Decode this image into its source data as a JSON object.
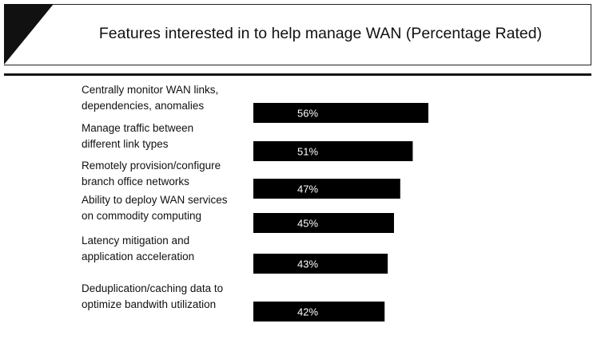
{
  "header": {
    "title": "Features interested in to help manage WAN (Percentage Rated)"
  },
  "colors": {
    "bar": "#000000",
    "bar_label": "#ffffff",
    "text": "#111111"
  },
  "chart_data": {
    "type": "bar",
    "orientation": "horizontal",
    "title": "Features interested in to help manage WAN (Percentage Rated)",
    "categories": [
      [
        "Centrally monitor WAN links,",
        "dependencies, anomalies"
      ],
      [
        "Manage traffic between",
        "different link types"
      ],
      [
        "Remotely provision/configure",
        "branch office networks"
      ],
      [
        "Ability to deploy WAN services",
        "on commodity computing"
      ],
      [
        "Latency mitigation and",
        "application acceleration"
      ],
      [
        "Deduplication/caching data to",
        "optimize bandwith utilization"
      ]
    ],
    "values": [
      56,
      51,
      47,
      45,
      43,
      42
    ],
    "data_labels": [
      "56%",
      "51%",
      "47%",
      "45%",
      "43%",
      "42%"
    ],
    "unit": "%",
    "xlabel": "",
    "ylabel": "",
    "axes_visible": false,
    "grid": false,
    "legend": "none"
  }
}
